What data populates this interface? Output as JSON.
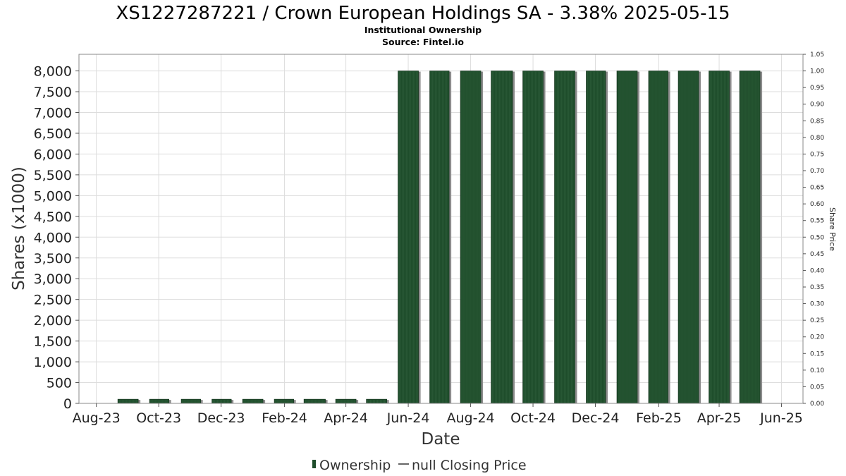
{
  "title": "XS1227287221 / Crown European Holdings SA - 3.38% 2025-05-15",
  "subtitle": "Institutional Ownership",
  "source": "Source: Fintel.io",
  "colors": {
    "bar": "#1e4d2b",
    "bar_shadow": "#8c8c8c",
    "grid": "#dddddd",
    "plot_border": "#888888"
  },
  "chart_data": {
    "type": "bar",
    "xlabel": "Date",
    "ylabel": "Shares (x1000)",
    "y2label": "Share Price",
    "ylim": [
      0,
      8400
    ],
    "y2lim": [
      0,
      1.05
    ],
    "grid": true,
    "legend_position": "bottom-center",
    "x_range": [
      "2023-07-15",
      "2025-06-22"
    ],
    "x_ticks": [
      {
        "date": "2023-08-01",
        "label": "Aug-23"
      },
      {
        "date": "2023-10-01",
        "label": "Oct-23"
      },
      {
        "date": "2023-12-01",
        "label": "Dec-23"
      },
      {
        "date": "2024-02-01",
        "label": "Feb-24"
      },
      {
        "date": "2024-04-01",
        "label": "Apr-24"
      },
      {
        "date": "2024-06-01",
        "label": "Jun-24"
      },
      {
        "date": "2024-08-01",
        "label": "Aug-24"
      },
      {
        "date": "2024-10-01",
        "label": "Oct-24"
      },
      {
        "date": "2024-12-01",
        "label": "Dec-24"
      },
      {
        "date": "2025-02-01",
        "label": "Feb-25"
      },
      {
        "date": "2025-04-01",
        "label": "Apr-25"
      },
      {
        "date": "2025-06-01",
        "label": "Jun-25"
      }
    ],
    "y_ticks": [
      "0",
      "500",
      "1,000",
      "1,500",
      "2,000",
      "2,500",
      "3,000",
      "3,500",
      "4,000",
      "4,500",
      "5,000",
      "5,500",
      "6,000",
      "6,500",
      "7,000",
      "7,500",
      "8,000"
    ],
    "y_tick_values": [
      0,
      500,
      1000,
      1500,
      2000,
      2500,
      3000,
      3500,
      4000,
      4500,
      5000,
      5500,
      6000,
      6500,
      7000,
      7500,
      8000
    ],
    "y2_ticks": [
      "0.00",
      "0.05",
      "0.10",
      "0.15",
      "0.20",
      "0.25",
      "0.30",
      "0.35",
      "0.40",
      "0.45",
      "0.50",
      "0.55",
      "0.60",
      "0.65",
      "0.70",
      "0.75",
      "0.80",
      "0.85",
      "0.90",
      "0.95",
      "1.00",
      "1.05"
    ],
    "y2_tick_values": [
      0,
      0.05,
      0.1,
      0.15,
      0.2,
      0.25,
      0.3,
      0.35,
      0.4,
      0.45,
      0.5,
      0.55,
      0.6,
      0.65,
      0.7,
      0.75,
      0.8,
      0.85,
      0.9,
      0.95,
      1.0,
      1.05
    ],
    "series": [
      {
        "name": "Ownership",
        "type": "bar",
        "points": [
          {
            "start": "2023-08-22",
            "end": "2023-09-11",
            "value": 100
          },
          {
            "start": "2023-09-22",
            "end": "2023-10-11",
            "value": 100
          },
          {
            "start": "2023-10-23",
            "end": "2023-11-11",
            "value": 100
          },
          {
            "start": "2023-11-22",
            "end": "2023-12-11",
            "value": 100
          },
          {
            "start": "2023-12-22",
            "end": "2024-01-11",
            "value": 100
          },
          {
            "start": "2024-01-22",
            "end": "2024-02-10",
            "value": 100
          },
          {
            "start": "2024-02-20",
            "end": "2024-03-12",
            "value": 100
          },
          {
            "start": "2024-03-22",
            "end": "2024-04-11",
            "value": 100
          },
          {
            "start": "2024-04-21",
            "end": "2024-05-11",
            "value": 100
          },
          {
            "start": "2024-05-22",
            "end": "2024-06-11",
            "value": 8000
          },
          {
            "start": "2024-06-22",
            "end": "2024-07-11",
            "value": 8000
          },
          {
            "start": "2024-07-22",
            "end": "2024-08-11",
            "value": 8000
          },
          {
            "start": "2024-08-21",
            "end": "2024-09-11",
            "value": 8000
          },
          {
            "start": "2024-09-21",
            "end": "2024-10-11",
            "value": 8000
          },
          {
            "start": "2024-10-22",
            "end": "2024-11-11",
            "value": 8000
          },
          {
            "start": "2024-11-22",
            "end": "2024-12-11",
            "value": 8000
          },
          {
            "start": "2024-12-22",
            "end": "2025-01-11",
            "value": 8000
          },
          {
            "start": "2025-01-22",
            "end": "2025-02-10",
            "value": 8000
          },
          {
            "start": "2025-02-20",
            "end": "2025-03-12",
            "value": 8000
          },
          {
            "start": "2025-03-22",
            "end": "2025-04-11",
            "value": 8000
          },
          {
            "start": "2025-04-21",
            "end": "2025-05-11",
            "value": 8000
          }
        ]
      },
      {
        "name": "null Closing Price",
        "type": "line",
        "values": []
      }
    ]
  }
}
